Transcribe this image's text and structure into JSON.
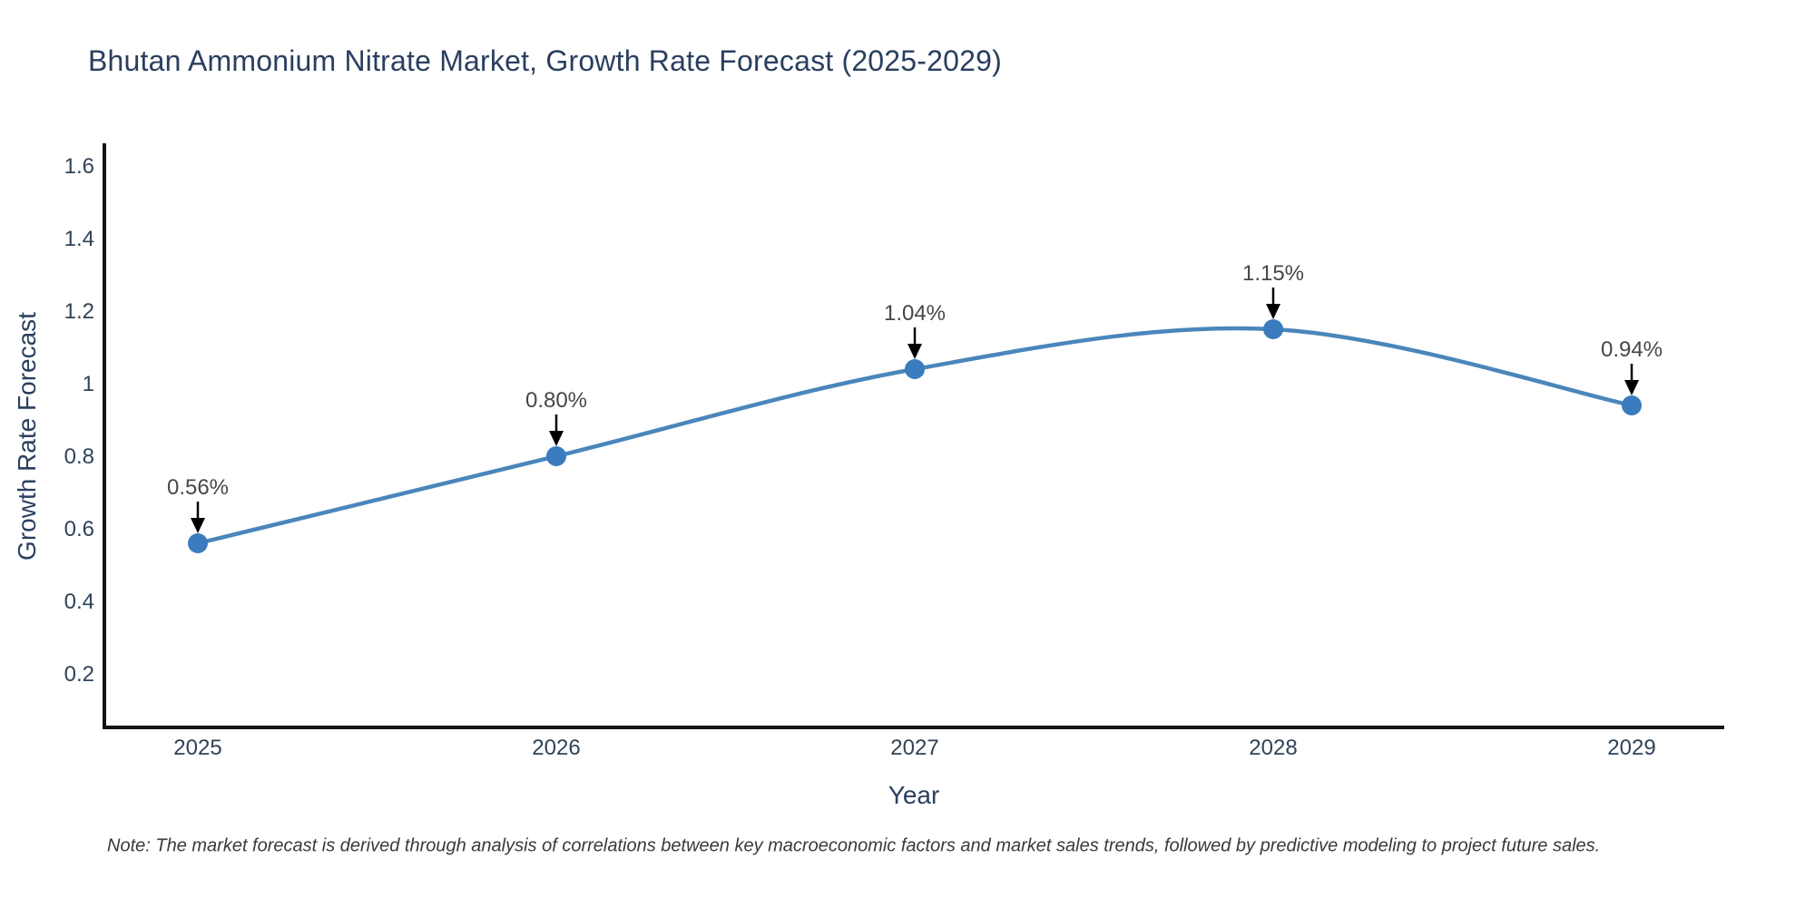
{
  "note": "Note: The market forecast is derived through analysis of correlations between key macroeconomic factors and market sales trends, followed by predictive modeling to project future sales.",
  "chart_data": {
    "type": "line",
    "title": "Bhutan Ammonium Nitrate Market, Growth Rate Forecast (2025-2029)",
    "xlabel": "Year",
    "ylabel": "Growth Rate Forecast",
    "x": [
      2025,
      2026,
      2027,
      2028,
      2029
    ],
    "values": [
      0.56,
      0.8,
      1.04,
      1.15,
      0.94
    ],
    "point_labels": [
      "0.56%",
      "0.80%",
      "1.04%",
      "1.15%",
      "0.94%"
    ],
    "x_tick_labels": [
      "2025",
      "2026",
      "2027",
      "2028",
      "2029"
    ],
    "y_ticks": [
      0.2,
      0.4,
      0.6,
      0.8,
      1,
      1.2,
      1.4,
      1.6
    ],
    "y_tick_labels": [
      "0.2",
      "0.4",
      "0.6",
      "0.8",
      "1",
      "1.2",
      "1.4",
      "1.6"
    ],
    "x_range": [
      2024.74,
      2029.26
    ],
    "y_range": [
      0.05,
      1.66
    ],
    "grid": false,
    "legend": false,
    "line_shape": "spline",
    "annotations_have_arrows": true
  },
  "colors": {
    "line": "#4a86bb",
    "marker": "#3a7cbe",
    "axis": "#141414",
    "arrow": "#000000",
    "tick_text": "#2f4358",
    "title_text": "#2a3f5f",
    "annotation_text": "#474747",
    "background": "#ffffff"
  }
}
